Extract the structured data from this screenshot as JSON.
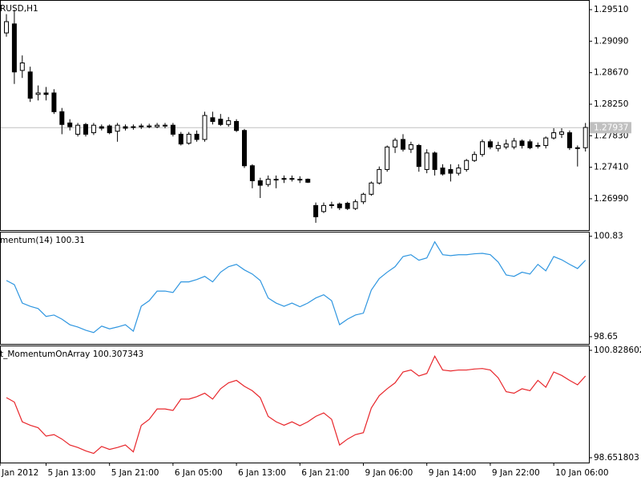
{
  "chart_data": [
    {
      "type": "candlestick",
      "title": "RUSD,H1",
      "open": [
        1.292,
        1.2932,
        1.287,
        1.2868,
        1.2838,
        1.284,
        1.284,
        1.2815,
        1.28,
        1.2785,
        1.2798,
        1.2787,
        1.2795,
        1.2796,
        1.2789,
        1.2795,
        1.2794,
        1.2795,
        1.2796,
        1.2795,
        1.2797,
        1.2797,
        1.2785,
        1.2773,
        1.2785,
        1.2778,
        1.2807,
        1.2805,
        1.2798,
        1.2802,
        1.279,
        1.2743,
        1.2723,
        1.2718,
        1.2724,
        1.2725,
        1.2726,
        1.2725,
        1.2725,
        1.269,
        1.2682,
        1.2691,
        1.2692,
        1.2693,
        1.2686,
        1.2695,
        1.2705,
        1.272,
        1.2738,
        1.2768,
        1.2778,
        1.2765,
        1.277,
        1.2738,
        1.276,
        1.274,
        1.2738,
        1.2733,
        1.2738,
        1.275,
        1.2758,
        1.2775,
        1.2766,
        1.2768,
        1.2768,
        1.2776,
        1.2775,
        1.2769,
        1.277,
        1.278,
        1.2785,
        1.2787,
        1.2766,
        1.2767
      ],
      "high": [
        1.2945,
        1.2951,
        1.289,
        1.2875,
        1.285,
        1.2848,
        1.2845,
        1.282,
        1.2805,
        1.28,
        1.28,
        1.28,
        1.2798,
        1.2798,
        1.28,
        1.2798,
        1.2798,
        1.2799,
        1.2799,
        1.28,
        1.28,
        1.28,
        1.2788,
        1.2788,
        1.279,
        1.2815,
        1.2815,
        1.2812,
        1.2808,
        1.2805,
        1.2792,
        1.2745,
        1.2727,
        1.273,
        1.273,
        1.273,
        1.273,
        1.2729,
        1.2726,
        1.2694,
        1.2694,
        1.2695,
        1.2694,
        1.2695,
        1.2698,
        1.2707,
        1.2722,
        1.2742,
        1.277,
        1.278,
        1.2785,
        1.2775,
        1.2772,
        1.2765,
        1.2762,
        1.2745,
        1.2745,
        1.2745,
        1.2752,
        1.2762,
        1.2778,
        1.2778,
        1.2775,
        1.2778,
        1.278,
        1.2778,
        1.2778,
        1.2774,
        1.2782,
        1.2793,
        1.2793,
        1.279,
        1.277,
        1.28
      ],
      "low": [
        1.2915,
        1.2852,
        1.286,
        1.2828,
        1.283,
        1.283,
        1.2812,
        1.2785,
        1.279,
        1.2782,
        1.2782,
        1.2784,
        1.279,
        1.2785,
        1.2775,
        1.279,
        1.2791,
        1.2792,
        1.2793,
        1.2793,
        1.2793,
        1.2782,
        1.277,
        1.2771,
        1.2775,
        1.2775,
        1.2798,
        1.2796,
        1.2795,
        1.2788,
        1.274,
        1.2713,
        1.27,
        1.2715,
        1.2713,
        1.272,
        1.2722,
        1.272,
        1.272,
        1.2667,
        1.268,
        1.2686,
        1.2684,
        1.2684,
        1.2684,
        1.2692,
        1.2703,
        1.2718,
        1.2735,
        1.276,
        1.2762,
        1.276,
        1.2735,
        1.2733,
        1.273,
        1.273,
        1.2722,
        1.273,
        1.2735,
        1.2748,
        1.2755,
        1.2765,
        1.2762,
        1.2765,
        1.2765,
        1.2766,
        1.2765,
        1.2766,
        1.2766,
        1.2778,
        1.278,
        1.2764,
        1.2742,
        1.2762
      ],
      "close": [
        1.2935,
        1.2868,
        1.288,
        1.2833,
        1.284,
        1.2838,
        1.2815,
        1.2798,
        1.2795,
        1.2797,
        1.2785,
        1.2797,
        1.2793,
        1.2787,
        1.2797,
        1.2793,
        1.2795,
        1.2796,
        1.2795,
        1.2797,
        1.2796,
        1.2785,
        1.2772,
        1.2785,
        1.2778,
        1.281,
        1.2802,
        1.2798,
        1.2803,
        1.279,
        1.2743,
        1.2723,
        1.2717,
        1.2725,
        1.2725,
        1.2726,
        1.2725,
        1.2724,
        1.2721,
        1.2675,
        1.269,
        1.269,
        1.2687,
        1.2686,
        1.2695,
        1.2705,
        1.272,
        1.2738,
        1.2768,
        1.2777,
        1.2765,
        1.2771,
        1.2742,
        1.276,
        1.2738,
        1.2732,
        1.2733,
        1.274,
        1.275,
        1.2758,
        1.2775,
        1.2768,
        1.277,
        1.2772,
        1.2776,
        1.277,
        1.2767,
        1.277,
        1.278,
        1.2787,
        1.2788,
        1.2767,
        1.2767,
        1.2794
      ],
      "current_price": 1.27937,
      "ylim": [
        1.26594,
        1.29596
      ],
      "yticks": [
        {
          "value": 1.2951,
          "label": "1.29510"
        },
        {
          "value": 1.2909,
          "label": "1.29090"
        },
        {
          "value": 1.2867,
          "label": "1.28670"
        },
        {
          "value": 1.2825,
          "label": "1.28250"
        },
        {
          "value": 1.2783,
          "label": "1.27830"
        },
        {
          "value": 1.2741,
          "label": "1.27410"
        },
        {
          "value": 1.2699,
          "label": "1.26990"
        }
      ]
    },
    {
      "type": "line",
      "title": "mentum(14) 100.31",
      "color": "#2f96e0",
      "values": [
        99.87,
        99.78,
        99.38,
        99.31,
        99.26,
        99.09,
        99.12,
        99.03,
        98.91,
        98.86,
        98.79,
        98.74,
        98.88,
        98.82,
        98.86,
        98.91,
        98.77,
        99.31,
        99.43,
        99.64,
        99.64,
        99.61,
        99.84,
        99.84,
        99.89,
        99.96,
        99.84,
        100.05,
        100.17,
        100.22,
        100.1,
        100.01,
        99.87,
        99.49,
        99.38,
        99.31,
        99.38,
        99.3,
        99.38,
        99.49,
        99.56,
        99.43,
        98.91,
        99.03,
        99.12,
        99.16,
        99.66,
        99.91,
        100.05,
        100.17,
        100.39,
        100.43,
        100.31,
        100.36,
        100.71,
        100.43,
        100.41,
        100.43,
        100.43,
        100.45,
        100.46,
        100.43,
        100.27,
        99.99,
        99.96,
        100.05,
        100.01,
        100.22,
        100.08,
        100.39,
        100.32,
        100.22,
        100.13,
        100.31
      ],
      "ylim": [
        98.51,
        100.93
      ],
      "yticks": [
        100.83,
        98.65
      ]
    },
    {
      "type": "line",
      "title": "t_MomentumOnArray 100.307343",
      "color": "#e8262b",
      "values": [
        99.87,
        99.78,
        99.38,
        99.31,
        99.26,
        99.09,
        99.12,
        99.03,
        98.91,
        98.86,
        98.79,
        98.74,
        98.88,
        98.82,
        98.86,
        98.91,
        98.77,
        99.31,
        99.43,
        99.64,
        99.64,
        99.61,
        99.84,
        99.84,
        99.89,
        99.96,
        99.84,
        100.05,
        100.17,
        100.22,
        100.1,
        100.01,
        99.87,
        99.49,
        99.38,
        99.31,
        99.38,
        99.3,
        99.38,
        99.49,
        99.56,
        99.43,
        98.91,
        99.03,
        99.12,
        99.16,
        99.66,
        99.91,
        100.05,
        100.17,
        100.39,
        100.43,
        100.31,
        100.36,
        100.71,
        100.43,
        100.41,
        100.43,
        100.43,
        100.45,
        100.46,
        100.43,
        100.27,
        99.99,
        99.96,
        100.05,
        100.01,
        100.22,
        100.08,
        100.39,
        100.32,
        100.22,
        100.13,
        100.307343
      ],
      "ylim": [
        98.57,
        100.91
      ],
      "yticks": [
        100.828602,
        98.651803
      ],
      "xticks": [
        {
          "value": -0.8,
          "label": "Jan 2012"
        },
        {
          "value": 5,
          "label": "5 Jan 13:00"
        },
        {
          "value": 13,
          "label": "5 Jan 21:00"
        },
        {
          "value": 21,
          "label": "6 Jan 05:00"
        },
        {
          "value": 29,
          "label": "6 Jan 13:00"
        },
        {
          "value": 37,
          "label": "6 Jan 21:00"
        },
        {
          "value": 45,
          "label": "9 Jan 06:00"
        },
        {
          "value": 53,
          "label": "9 Jan 14:00"
        },
        {
          "value": 61,
          "label": "9 Jan 22:00"
        },
        {
          "value": 69,
          "label": "10 Jan 06:00"
        }
      ]
    }
  ]
}
